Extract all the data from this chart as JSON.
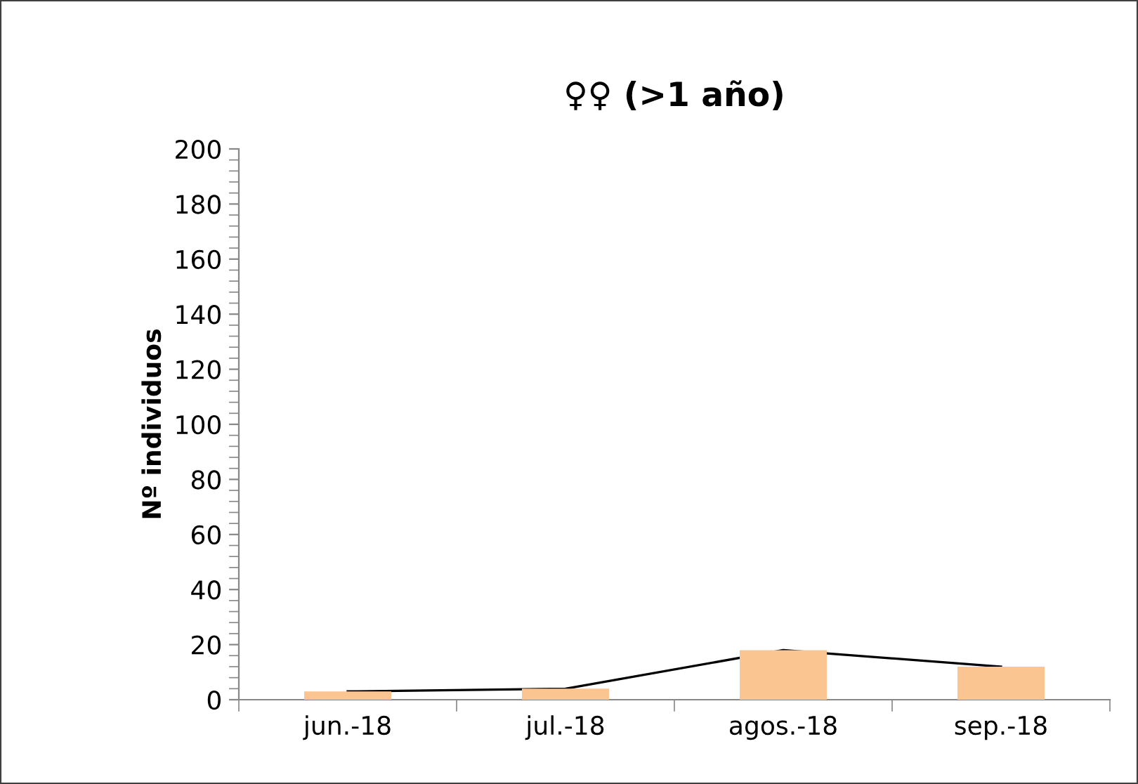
{
  "chart_data": {
    "type": "bar",
    "title": "♀♀ (>1 año)",
    "ylabel": "Nº individuos",
    "categories": [
      "jun.-18",
      "jul.-18",
      "agos.-18",
      "sep.-18"
    ],
    "series": [
      {
        "color": "#fac591",
        "values": [
          3,
          4,
          18,
          12
        ]
      },
      {
        "type": "line",
        "color": "#000000",
        "values": [
          3,
          4,
          18,
          12
        ]
      }
    ],
    "ylim": [
      0,
      200
    ],
    "yticks": [
      0,
      20,
      40,
      60,
      80,
      100,
      120,
      140,
      160,
      180,
      200
    ],
    "grid": false,
    "legend": false,
    "marker": "none"
  }
}
